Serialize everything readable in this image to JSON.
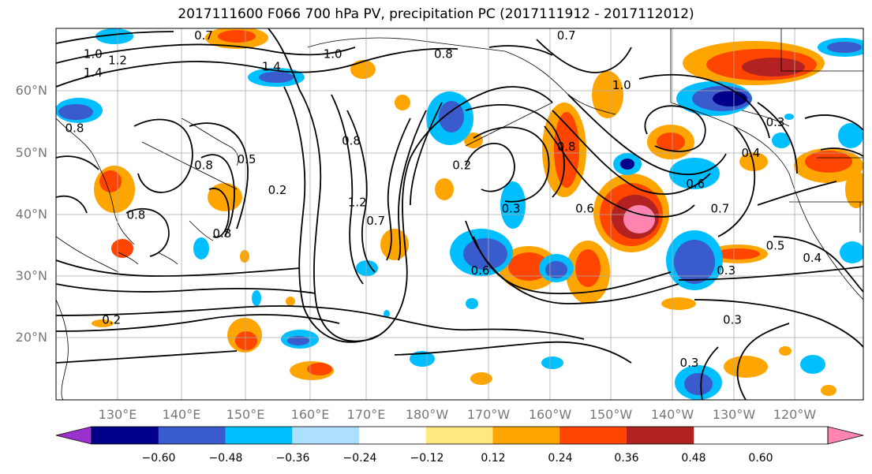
{
  "title": "2017111600 F066 700 hPa PV, precipitation PC (2017111912 - 2017112012)",
  "lat_labels": [
    "60°N",
    "50°N",
    "40°N",
    "30°N",
    "20°N"
  ],
  "lon_labels": [
    "130°E",
    "140°E",
    "150°E",
    "160°E",
    "170°E",
    "180°W",
    "170°W",
    "160°W",
    "150°W",
    "140°W",
    "130°W",
    "120°W"
  ],
  "colorbar": {
    "tick_labels": [
      "−0.60",
      "−0.48",
      "−0.36",
      "−0.24",
      "−0.12",
      "0.12",
      "0.24",
      "0.36",
      "0.48",
      "0.60"
    ],
    "bin_colors": [
      "#9932CC",
      "#00008B",
      "#3A5BCC",
      "#00BFFF",
      "#ADDFFF",
      "#FFFFFF",
      "#FFE97F",
      "#FFA500",
      "#FF4500",
      "#B22222",
      "#FF85B0"
    ]
  },
  "contour_labels": [
    {
      "text": "1.0",
      "lon": 126,
      "lat": 66
    },
    {
      "text": "1.2",
      "lon": 130,
      "lat": 65
    },
    {
      "text": "1.4",
      "lon": 126,
      "lat": 63
    },
    {
      "text": "0.7",
      "lon": 144,
      "lat": 69
    },
    {
      "text": "1.4",
      "lon": 155,
      "lat": 64
    },
    {
      "text": "1.0",
      "lon": 165,
      "lat": 66
    },
    {
      "text": "0.8",
      "lon": 183,
      "lat": 66
    },
    {
      "text": "0.7",
      "lon": 203,
      "lat": 69
    },
    {
      "text": "1.0",
      "lon": 212,
      "lat": 61
    },
    {
      "text": "0.8",
      "lon": 144,
      "lat": 48
    },
    {
      "text": "0.5",
      "lon": 151,
      "lat": 49
    },
    {
      "text": "0.2",
      "lon": 156,
      "lat": 44
    },
    {
      "text": "0.8",
      "lon": 147,
      "lat": 37
    },
    {
      "text": "0.8",
      "lon": 168,
      "lat": 52
    },
    {
      "text": "1.2",
      "lon": 169,
      "lat": 42
    },
    {
      "text": "0.7",
      "lon": 172,
      "lat": 39
    },
    {
      "text": "0.2",
      "lon": 186,
      "lat": 48
    },
    {
      "text": "0.3",
      "lon": 194,
      "lat": 41
    },
    {
      "text": "0.8",
      "lon": 203,
      "lat": 51
    },
    {
      "text": "0.6",
      "lon": 206,
      "lat": 41
    },
    {
      "text": "0.6",
      "lon": 189,
      "lat": 31
    },
    {
      "text": "0.6",
      "lon": 224,
      "lat": 45
    },
    {
      "text": "0.7",
      "lon": 228,
      "lat": 41
    },
    {
      "text": "0.4",
      "lon": 233,
      "lat": 50
    },
    {
      "text": "0.3",
      "lon": 237,
      "lat": 55
    },
    {
      "text": "0.5",
      "lon": 237,
      "lat": 35
    },
    {
      "text": "0.4",
      "lon": 243,
      "lat": 33
    },
    {
      "text": "0.3",
      "lon": 229,
      "lat": 31
    },
    {
      "text": "0.3",
      "lon": 230,
      "lat": 23
    },
    {
      "text": "0.3",
      "lon": 223,
      "lat": 16
    },
    {
      "text": "0.2",
      "lon": 129,
      "lat": 23
    },
    {
      "text": "0.8",
      "lon": 123,
      "lat": 54
    },
    {
      "text": "0.8",
      "lon": 133,
      "lat": 40
    }
  ]
}
